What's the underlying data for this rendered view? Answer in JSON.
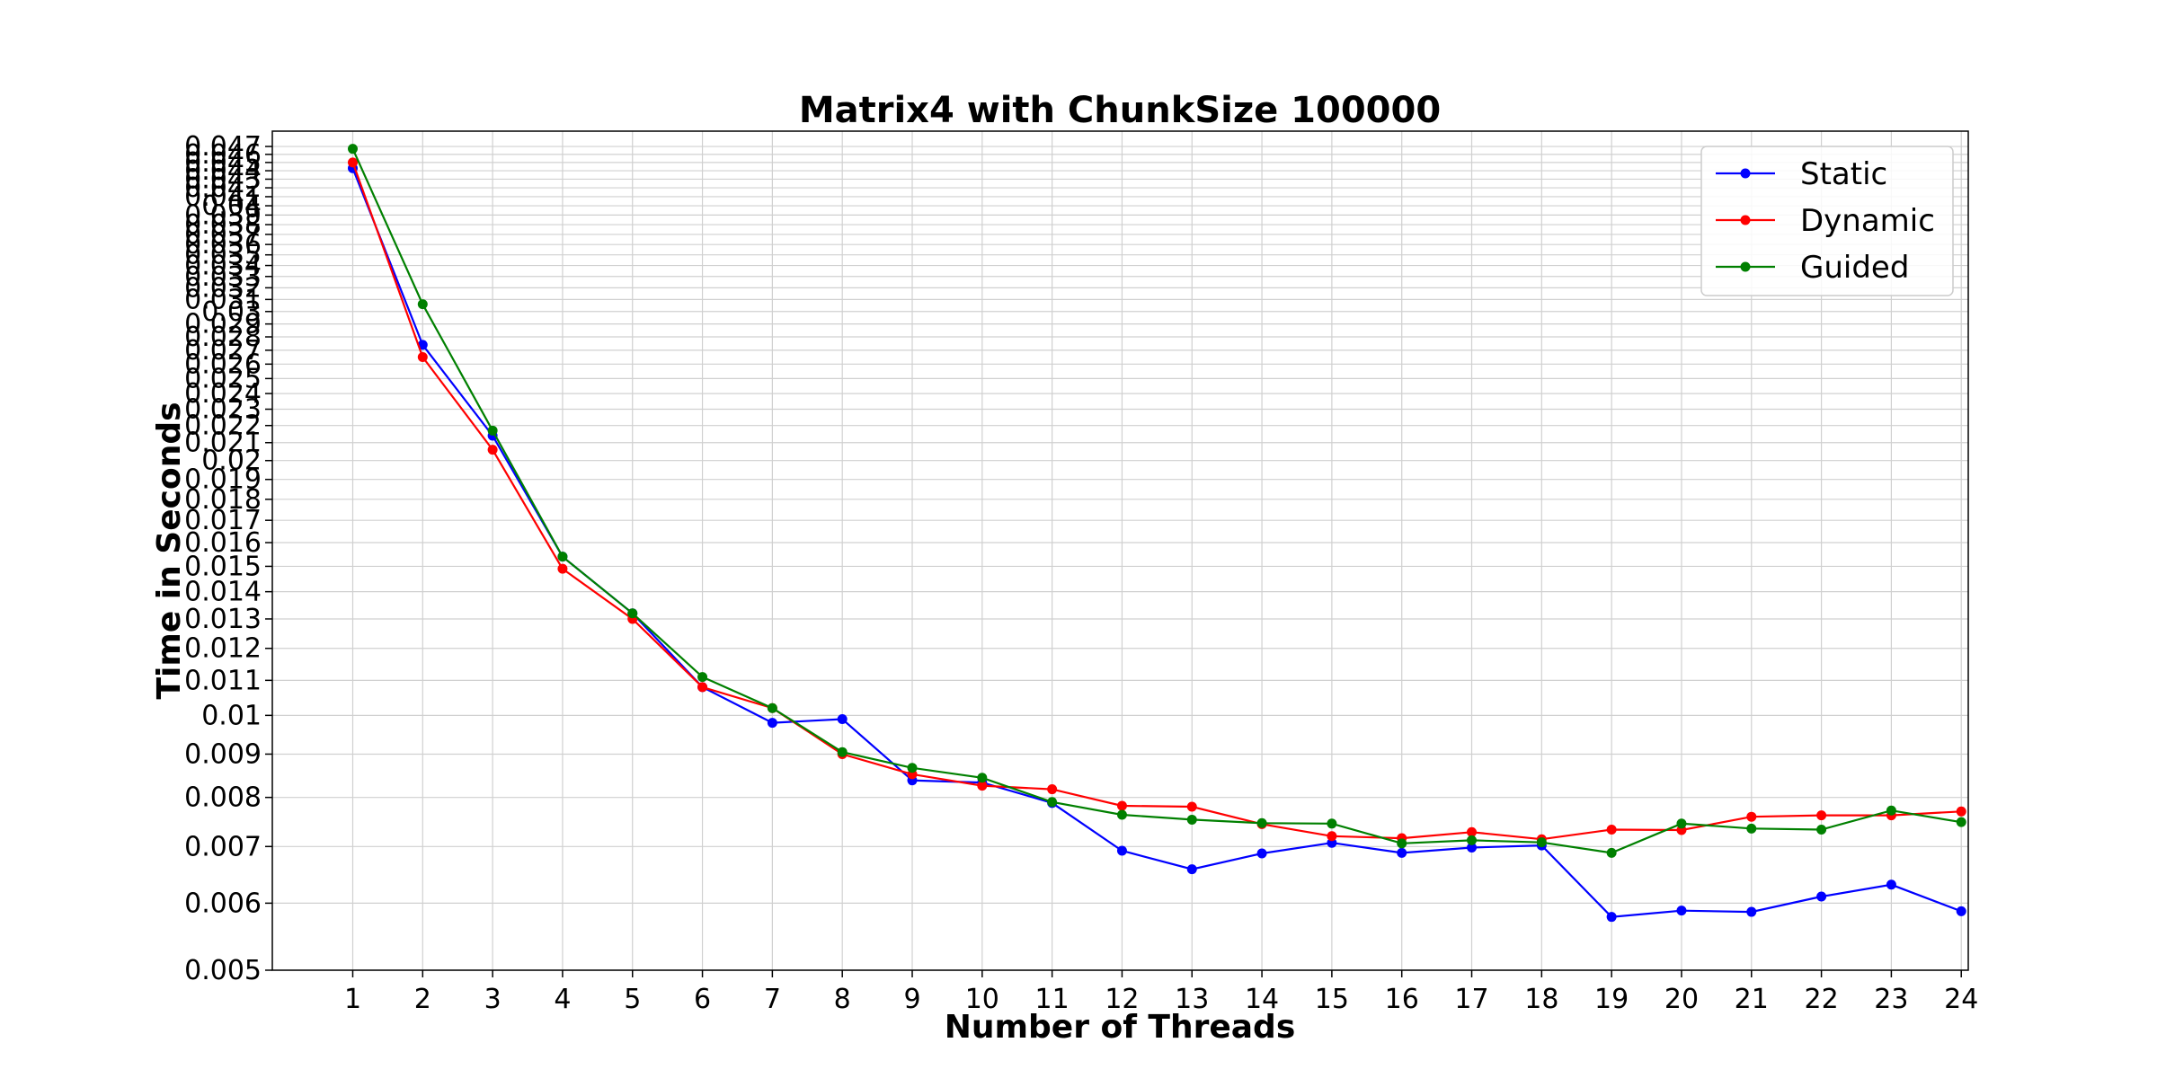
{
  "chart_data": {
    "type": "line",
    "title": "Matrix4 with ChunkSize 100000",
    "xlabel": "Number of Threads",
    "ylabel": "Time in Seconds",
    "yscale": "log",
    "ylim": [
      0.005,
      0.049
    ],
    "xlim": [
      -0.15,
      24.1
    ],
    "grid": true,
    "legend_position": "top-right",
    "x": [
      1,
      2,
      3,
      4,
      5,
      6,
      7,
      8,
      9,
      10,
      11,
      12,
      13,
      14,
      15,
      16,
      17,
      18,
      19,
      20,
      21,
      22,
      23,
      24
    ],
    "x_tick_labels": [
      "1",
      "2",
      "3",
      "4",
      "5",
      "6",
      "7",
      "8",
      "9",
      "10",
      "11",
      "12",
      "13",
      "14",
      "15",
      "16",
      "17",
      "18",
      "19",
      "20",
      "21",
      "22",
      "23",
      "24"
    ],
    "y_ticks": [
      0.005,
      0.006,
      0.007,
      0.008,
      0.009,
      0.01,
      0.011,
      0.012,
      0.013,
      0.014,
      0.015,
      0.016,
      0.017,
      0.018,
      0.019,
      0.02,
      0.021,
      0.022,
      0.023,
      0.024,
      0.025,
      0.026,
      0.027,
      0.028,
      0.029,
      0.03,
      0.031,
      0.032,
      0.033,
      0.034,
      0.035,
      0.036,
      0.037,
      0.038,
      0.039,
      0.04,
      0.041,
      0.042,
      0.043,
      0.044,
      0.045,
      0.046,
      0.047
    ],
    "y_tick_labels": [
      "0.005",
      "0.006",
      "0.007",
      "0.008",
      "0.009",
      "0.01",
      "0.011",
      "0.012",
      "0.013",
      "0.014",
      "0.015",
      "0.016",
      "0.017",
      "0.018",
      "0.019",
      "0.02",
      "0.021",
      "0.022",
      "0.023",
      "0.024",
      "0.025",
      "0.026",
      "0.027",
      "0.028",
      "0.029",
      "0.03",
      "0.031",
      "0.032",
      "0.033",
      "0.034",
      "0.035",
      "0.036",
      "0.037",
      "0.038",
      "0.039",
      "0.04",
      "0.041",
      "0.042",
      "0.043",
      "0.044",
      "0.045",
      "0.046",
      "0.047"
    ],
    "series": [
      {
        "name": "Static",
        "color": "#0000ff",
        "values": [
          0.0443,
          0.0274,
          0.0214,
          0.0154,
          0.0132,
          0.0108,
          0.0098,
          0.0099,
          0.00838,
          0.00833,
          0.00788,
          0.00692,
          0.00658,
          0.00687,
          0.00707,
          0.00688,
          0.00698,
          0.00702,
          0.00578,
          0.00588,
          0.00586,
          0.00611,
          0.00631,
          0.00587
        ]
      },
      {
        "name": "Dynamic",
        "color": "#ff0000",
        "values": [
          0.045,
          0.0265,
          0.0206,
          0.0149,
          0.013,
          0.0108,
          0.0102,
          0.009,
          0.00852,
          0.00826,
          0.00818,
          0.00782,
          0.0078,
          0.00744,
          0.0072,
          0.00716,
          0.00728,
          0.00714,
          0.00733,
          0.00732,
          0.00759,
          0.00762,
          0.00762,
          0.0077
        ]
      },
      {
        "name": "Guided",
        "color": "#008000",
        "values": [
          0.0467,
          0.0306,
          0.0217,
          0.0154,
          0.0132,
          0.0111,
          0.0102,
          0.00905,
          0.00867,
          0.00844,
          0.0079,
          0.00763,
          0.00753,
          0.00746,
          0.00745,
          0.00706,
          0.00712,
          0.00708,
          0.00688,
          0.00745,
          0.00735,
          0.00733,
          0.00772,
          0.00748
        ]
      }
    ]
  }
}
